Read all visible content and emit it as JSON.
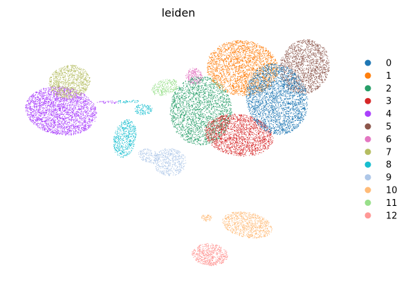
{
  "chart_data": {
    "type": "scatter",
    "title": "leiden",
    "xlabel": "",
    "ylabel": "",
    "grid": false,
    "axes_visible": false,
    "legend_placement": "right",
    "series": [
      {
        "name": "0",
        "color": "#1f77b4"
      },
      {
        "name": "1",
        "color": "#ff7f0e"
      },
      {
        "name": "2",
        "color": "#279e68"
      },
      {
        "name": "3",
        "color": "#d62728"
      },
      {
        "name": "4",
        "color": "#aa40fc"
      },
      {
        "name": "5",
        "color": "#8c564b"
      },
      {
        "name": "6",
        "color": "#e377c2"
      },
      {
        "name": "7",
        "color": "#b5bd61"
      },
      {
        "name": "8",
        "color": "#17becf"
      },
      {
        "name": "9",
        "color": "#aec7e8"
      },
      {
        "name": "10",
        "color": "#ffbb78"
      },
      {
        "name": "11",
        "color": "#98df8a"
      },
      {
        "name": "12",
        "color": "#ff9896"
      }
    ]
  }
}
